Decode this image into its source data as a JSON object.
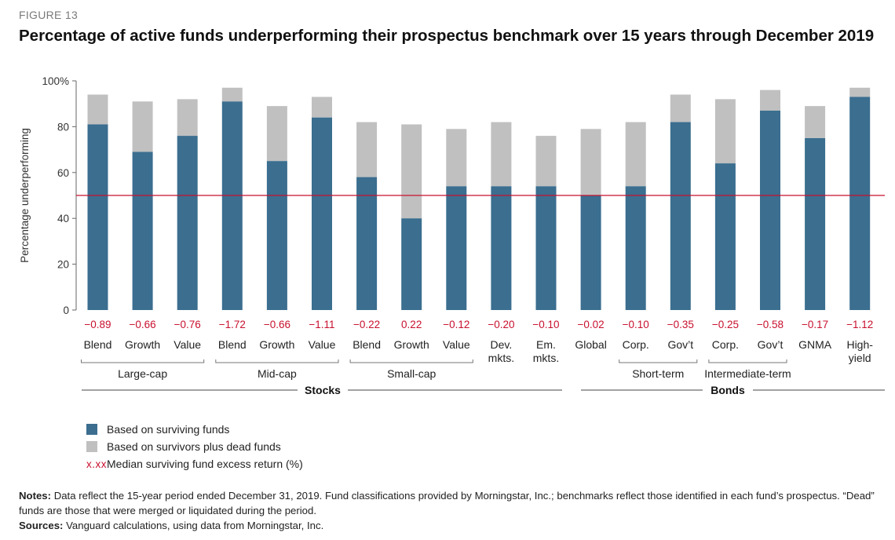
{
  "figure_label": "FIGURE 13",
  "title": "Percentage of active funds underperforming their prospectus benchmark over 15 years through December 2019",
  "colors": {
    "surviving": "#3b6e8f",
    "dead": "#c0c0c0",
    "median": "#c8102e",
    "axis": "#666666"
  },
  "chart_data": {
    "type": "bar",
    "stacked": "overlay",
    "ylabel": "Percentage underperforming",
    "ylim": [
      0,
      100
    ],
    "yticks": [
      "0",
      "20",
      "40",
      "60",
      "80",
      "100%"
    ],
    "reference_line": 50,
    "categories": [
      {
        "label": "Blend",
        "excess": "−0.89",
        "surviving": 81,
        "total": 94
      },
      {
        "label": "Growth",
        "excess": "−0.66",
        "surviving": 69,
        "total": 91
      },
      {
        "label": "Value",
        "excess": "−0.76",
        "surviving": 76,
        "total": 92
      },
      {
        "label": "Blend",
        "excess": "−1.72",
        "surviving": 91,
        "total": 97
      },
      {
        "label": "Growth",
        "excess": "−0.66",
        "surviving": 65,
        "total": 89
      },
      {
        "label": "Value",
        "excess": "−1.11",
        "surviving": 84,
        "total": 93
      },
      {
        "label": "Blend",
        "excess": "−0.22",
        "surviving": 58,
        "total": 82
      },
      {
        "label": "Growth",
        "excess": "0.22",
        "surviving": 40,
        "total": 81
      },
      {
        "label": "Value",
        "excess": "−0.12",
        "surviving": 54,
        "total": 79
      },
      {
        "label": "Dev.\nmkts.",
        "excess": "−0.20",
        "surviving": 54,
        "total": 82
      },
      {
        "label": "Em.\nmkts.",
        "excess": "−0.10",
        "surviving": 54,
        "total": 76
      },
      {
        "label": "Global",
        "excess": "−0.02",
        "surviving": 50,
        "total": 79
      },
      {
        "label": "Corp.",
        "excess": "−0.10",
        "surviving": 54,
        "total": 82
      },
      {
        "label": "Gov’t",
        "excess": "−0.35",
        "surviving": 82,
        "total": 94
      },
      {
        "label": "Corp.",
        "excess": "−0.25",
        "surviving": 64,
        "total": 92
      },
      {
        "label": "Gov’t",
        "excess": "−0.58",
        "surviving": 87,
        "total": 96
      },
      {
        "label": "GNMA",
        "excess": "−0.17",
        "surviving": 75,
        "total": 89
      },
      {
        "label": "High-\nyield",
        "excess": "−1.12",
        "surviving": 93,
        "total": 97
      }
    ],
    "subgroups": [
      {
        "label": "Large-cap",
        "from": 0,
        "to": 2
      },
      {
        "label": "Mid-cap",
        "from": 3,
        "to": 5
      },
      {
        "label": "Small-cap",
        "from": 6,
        "to": 8
      },
      {
        "label": "Short-term",
        "from": 12,
        "to": 13
      },
      {
        "label": "Intermediate-term",
        "from": 14,
        "to": 15
      }
    ],
    "groups": [
      {
        "label": "Stocks",
        "from": 0,
        "to": 10
      },
      {
        "label": "Bonds",
        "from": 11,
        "to": 17
      }
    ],
    "legend": [
      {
        "key": "surviving",
        "label": "Based on surviving funds"
      },
      {
        "key": "dead",
        "label": "Based on survivors plus dead funds"
      },
      {
        "key": "median",
        "symbol": "x.xx",
        "label": "Median surviving fund excess return (%)"
      }
    ]
  },
  "notes": {
    "label": "Notes:",
    "text": "Data reflect the 15-year period ended December 31, 2019. Fund classifications provided by Morningstar, Inc.; benchmarks reflect those identified in each fund’s prospectus. “Dead” funds are those that were merged or liquidated during the period."
  },
  "sources": {
    "label": "Sources:",
    "text": "Vanguard calculations, using data from Morningstar, Inc."
  }
}
